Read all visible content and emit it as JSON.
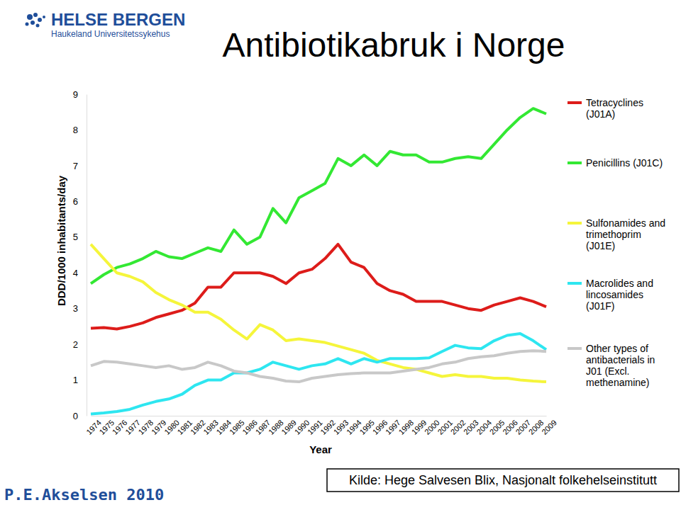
{
  "chart_data": {
    "type": "line",
    "title": "Antibiotikabruk i Norge",
    "x_label": "Year",
    "y_label": "DDD/1000 inhabitants/day",
    "categories": [
      "1974",
      "1975",
      "1976",
      "1977",
      "1978",
      "1979",
      "1980",
      "1981",
      "1982",
      "1983",
      "1984",
      "1985",
      "1986",
      "1987",
      "1988",
      "1989",
      "1990",
      "1991",
      "1992",
      "1993",
      "1994",
      "1995",
      "1996",
      "1997",
      "1998",
      "1999",
      "2000",
      "2001",
      "2002",
      "2003",
      "2004",
      "2005",
      "2006",
      "2007",
      "2008",
      "2009"
    ],
    "series": [
      {
        "name": "Tetracyclines (J01A)",
        "color": "#dd1c1a",
        "values": [
          2.45,
          2.47,
          2.43,
          2.5,
          2.6,
          2.75,
          2.85,
          2.95,
          3.15,
          3.6,
          3.6,
          4.0,
          4.0,
          4.0,
          3.9,
          3.7,
          4.0,
          4.1,
          4.4,
          4.8,
          4.3,
          4.15,
          3.7,
          3.5,
          3.4,
          3.2,
          3.2,
          3.2,
          3.1,
          3.0,
          2.95,
          3.1,
          3.2,
          3.3,
          3.2,
          3.05
        ]
      },
      {
        "name": "Penicillins (J01C)",
        "color": "#33e833",
        "values": [
          3.7,
          3.95,
          4.15,
          4.25,
          4.4,
          4.6,
          4.45,
          4.4,
          4.55,
          4.7,
          4.6,
          5.2,
          4.8,
          5.0,
          5.8,
          5.4,
          6.1,
          6.3,
          6.5,
          7.2,
          7.0,
          7.3,
          7.0,
          7.4,
          7.3,
          7.3,
          7.1,
          7.1,
          7.2,
          7.25,
          7.2,
          7.6,
          8.0,
          8.35,
          8.6,
          8.45
        ]
      },
      {
        "name": "Sulfonamides and trimethoprim (J01E)",
        "color": "#f5f53b",
        "values": [
          4.8,
          4.4,
          4.0,
          3.9,
          3.75,
          3.45,
          3.25,
          3.1,
          2.9,
          2.9,
          2.7,
          2.4,
          2.15,
          2.55,
          2.4,
          2.1,
          2.15,
          2.1,
          2.05,
          1.95,
          1.85,
          1.75,
          1.55,
          1.45,
          1.35,
          1.3,
          1.2,
          1.1,
          1.15,
          1.1,
          1.1,
          1.05,
          1.05,
          1.0,
          0.97,
          0.95
        ]
      },
      {
        "name": "Macrolides and lincosamides (J01F)",
        "color": "#2ee6f0",
        "values": [
          0.05,
          0.08,
          0.12,
          0.18,
          0.3,
          0.4,
          0.47,
          0.6,
          0.85,
          1.0,
          1.0,
          1.2,
          1.2,
          1.3,
          1.5,
          1.4,
          1.3,
          1.4,
          1.45,
          1.6,
          1.45,
          1.6,
          1.5,
          1.6,
          1.6,
          1.6,
          1.62,
          1.8,
          1.97,
          1.9,
          1.88,
          2.1,
          2.25,
          2.3,
          2.1,
          1.85
        ]
      },
      {
        "name": "Other types of antibacterials in J01 (Excl. methenamine)",
        "color": "#c8c8c8",
        "values": [
          1.4,
          1.52,
          1.5,
          1.45,
          1.4,
          1.35,
          1.4,
          1.3,
          1.35,
          1.5,
          1.4,
          1.25,
          1.2,
          1.1,
          1.05,
          0.97,
          0.95,
          1.05,
          1.1,
          1.15,
          1.18,
          1.2,
          1.2,
          1.2,
          1.25,
          1.3,
          1.35,
          1.45,
          1.5,
          1.6,
          1.65,
          1.68,
          1.75,
          1.8,
          1.82,
          1.8
        ]
      }
    ],
    "ylim": [
      0,
      9
    ],
    "yticks": [
      0,
      1,
      2,
      3,
      4,
      5,
      6,
      7,
      8,
      9
    ],
    "grid": false,
    "legend": "right"
  },
  "page": {
    "logo_title": "HELSE BERGEN",
    "logo_subtitle": "Haukeland Universitetssykehus",
    "author": "P.E.Akselsen 2010",
    "source": "Kilde: Hege Salvesen Blix, Nasjonalt folkehelseinstitutt"
  }
}
